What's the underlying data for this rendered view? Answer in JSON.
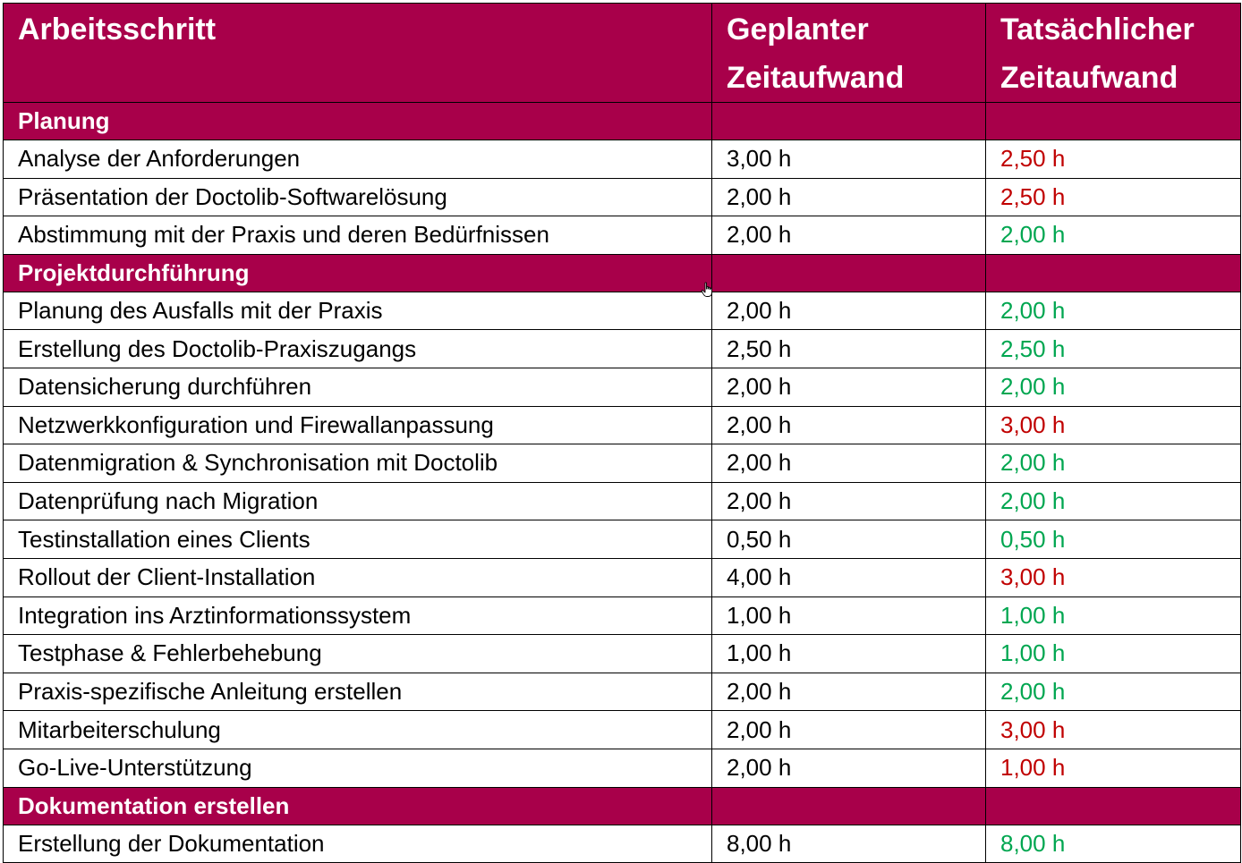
{
  "table": {
    "headers": {
      "step": "Arbeitsschritt",
      "planned": "Geplanter Zeitaufwand",
      "actual": "Tatsächlicher Zeitaufwand"
    },
    "sections": [
      {
        "title": "Planung",
        "rows": [
          {
            "step": "Analyse der Anforderungen",
            "planned": "3,00 h",
            "actual": "2,50 h",
            "status": "red"
          },
          {
            "step": "Präsentation der Doctolib-Softwarelösung",
            "planned": "2,00 h",
            "actual": "2,50 h",
            "status": "red"
          },
          {
            "step": "Abstimmung mit der Praxis und deren Bedürfnissen",
            "planned": "2,00 h",
            "actual": "2,00 h",
            "status": "green"
          }
        ]
      },
      {
        "title": "Projektdurchführung",
        "rows": [
          {
            "step": "Planung des Ausfalls mit der Praxis",
            "planned": "2,00 h",
            "actual": "2,00 h",
            "status": "green"
          },
          {
            "step": "Erstellung des Doctolib-Praxiszugangs",
            "planned": "2,50 h",
            "actual": "2,50 h",
            "status": "green"
          },
          {
            "step": "Datensicherung durchführen",
            "planned": "2,00 h",
            "actual": "2,00 h",
            "status": "green"
          },
          {
            "step": "Netzwerkkonfiguration und Firewallanpassung",
            "planned": "2,00 h",
            "actual": "3,00 h",
            "status": "red"
          },
          {
            "step": "Datenmigration & Synchronisation mit Doctolib",
            "planned": "2,00 h",
            "actual": "2,00 h",
            "status": "green"
          },
          {
            "step": "Datenprüfung nach Migration",
            "planned": "2,00 h",
            "actual": "2,00 h",
            "status": "green"
          },
          {
            "step": "Testinstallation eines Clients",
            "planned": "0,50 h",
            "actual": "0,50 h",
            "status": "green"
          },
          {
            "step": "Rollout der Client-Installation",
            "planned": "4,00 h",
            "actual": "3,00 h",
            "status": "red"
          },
          {
            "step": "Integration ins Arztinformationssystem",
            "planned": "1,00 h",
            "actual": "1,00 h",
            "status": "green"
          },
          {
            "step": "Testphase & Fehlerbehebung",
            "planned": "1,00 h",
            "actual": "1,00 h",
            "status": "green"
          },
          {
            "step": "Praxis-spezifische Anleitung erstellen",
            "planned": "2,00 h",
            "actual": "2,00 h",
            "status": "green"
          },
          {
            "step": "Mitarbeiterschulung",
            "planned": "2,00 h",
            "actual": "3,00 h",
            "status": "red"
          },
          {
            "step": "Go-Live-Unterstützung",
            "planned": "2,00 h",
            "actual": "1,00 h",
            "status": "red"
          }
        ]
      },
      {
        "title": "Dokumentation erstellen",
        "rows": [
          {
            "step": "Erstellung der Dokumentation",
            "planned": "8,00 h",
            "actual": "8,00 h",
            "status": "green"
          }
        ]
      }
    ]
  },
  "colors": {
    "header_bg": "#a8004a",
    "red": "#c00000",
    "green": "#00a650"
  },
  "cursor": {
    "icon": "hand-cursor-icon"
  }
}
